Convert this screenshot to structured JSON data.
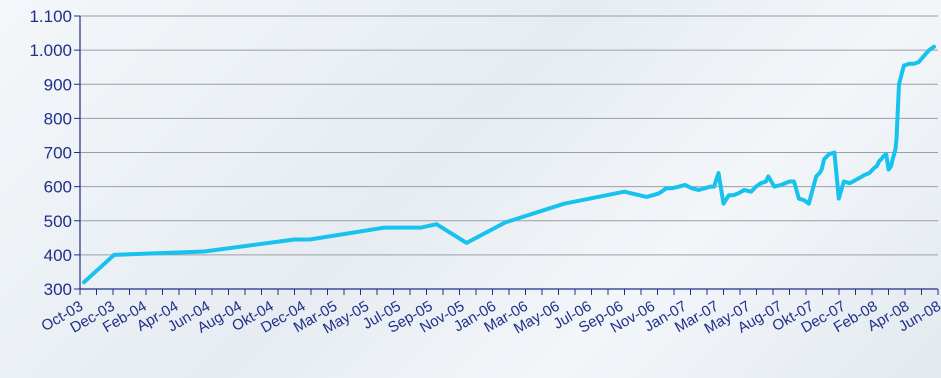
{
  "chart_data": {
    "type": "line",
    "title": "",
    "xlabel": "",
    "ylabel": "",
    "ylim": [
      300,
      1100
    ],
    "grid": true,
    "legend": "none",
    "colors": {
      "line": "#17c2ee",
      "grid": "#9a9ea6",
      "axis": "#1f2f8c",
      "text": "#1f2f8c"
    },
    "y_ticks": [
      "300",
      "400",
      "500",
      "600",
      "700",
      "800",
      "900",
      "1.000",
      "1.100"
    ],
    "y_tick_values": [
      300,
      400,
      500,
      600,
      700,
      800,
      900,
      1000,
      1100
    ],
    "x_ticks": [
      "Oct-03",
      "Dec-03",
      "Feb-04",
      "Apr-04",
      "Jun-04",
      "Aug-04",
      "Okt-04",
      "Dec-04",
      "Mar-05",
      "May-05",
      "Jul-05",
      "Sep-05",
      "Nov-05",
      "Jan-06",
      "Mar-06",
      "May-06",
      "Jul-06",
      "Sep-06",
      "Nov-06",
      "Jan-07",
      "Mar-07",
      "May-07",
      "Aug-07",
      "Okt-07",
      "Dec-07",
      "Feb-08",
      "Apr-08",
      "Jun-08"
    ],
    "series": [
      {
        "x": [
          "2003-10-01",
          "2003-12-01",
          "2004-06-01",
          "2004-12-01",
          "2005-01-01",
          "2005-06-01",
          "2005-08-15",
          "2005-09-15",
          "2005-11-15",
          "2006-02-01",
          "2006-06-01",
          "2006-10-01",
          "2006-11-15",
          "2006-12-10",
          "2006-12-25",
          "2007-01-05",
          "2007-01-20",
          "2007-02-01",
          "2007-02-15",
          "2007-03-01",
          "2007-03-25",
          "2007-04-01",
          "2007-04-10",
          "2007-04-20",
          "2007-05-01",
          "2007-05-10",
          "2007-05-20",
          "2007-06-01",
          "2007-06-15",
          "2007-06-25",
          "2007-07-05",
          "2007-07-15",
          "2007-07-20",
          "2007-08-01",
          "2007-08-15",
          "2007-09-01",
          "2007-09-10",
          "2007-09-20",
          "2007-10-01",
          "2007-10-10",
          "2007-10-25",
          "2007-11-01",
          "2007-11-05",
          "2007-11-10",
          "2007-11-20",
          "2007-12-01",
          "2007-12-10",
          "2007-12-20",
          "2008-01-01",
          "2008-01-20",
          "2008-02-01",
          "2008-02-10",
          "2008-02-20",
          "2008-02-25",
          "2008-03-01",
          "2008-03-05",
          "2008-03-10",
          "2008-03-15",
          "2008-03-20",
          "2008-03-25",
          "2008-03-28",
          "2008-04-01",
          "2008-04-03",
          "2008-04-05",
          "2008-04-10",
          "2008-04-20",
          "2008-05-01",
          "2008-05-10",
          "2008-05-20",
          "2008-06-01",
          "2008-06-10",
          "2008-06-20"
        ],
        "values": [
          320,
          400,
          410,
          445,
          445,
          480,
          480,
          490,
          435,
          495,
          550,
          585,
          570,
          580,
          595,
          595,
          600,
          605,
          595,
          590,
          600,
          600,
          640,
          550,
          575,
          575,
          580,
          590,
          585,
          600,
          610,
          615,
          630,
          600,
          605,
          615,
          615,
          565,
          560,
          550,
          630,
          640,
          650,
          680,
          695,
          700,
          565,
          615,
          610,
          625,
          635,
          640,
          655,
          660,
          675,
          680,
          690,
          695,
          650,
          660,
          680,
          700,
          710,
          740,
          900,
          955,
          960,
          960,
          965,
          985,
          1000,
          1010
        ]
      }
    ]
  }
}
